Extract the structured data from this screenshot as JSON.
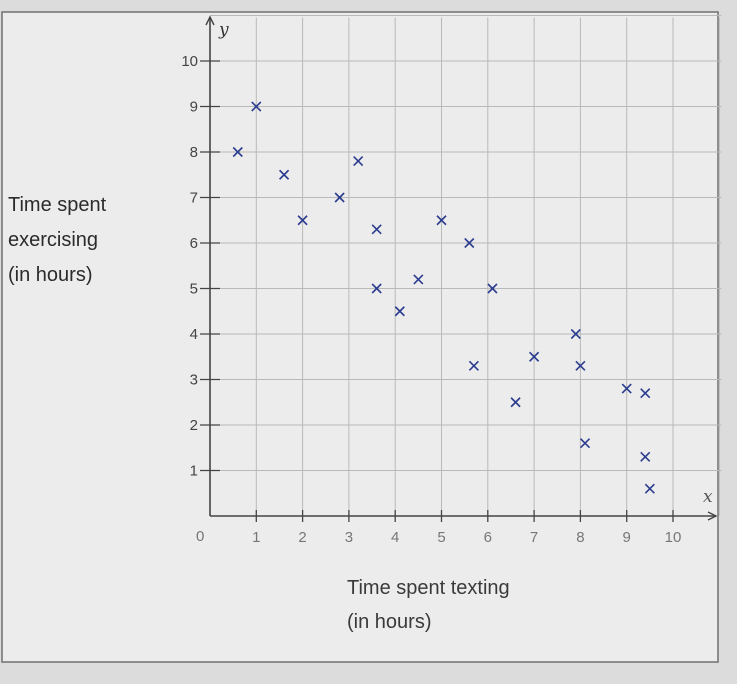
{
  "chart_data": {
    "type": "scatter",
    "ylabel_lines": [
      "Time spent",
      "exercising",
      "(in hours)"
    ],
    "xlabel_lines": [
      "Time spent texting",
      "(in hours)"
    ],
    "x_axis_letter": "x",
    "y_axis_letter": "y",
    "origin_label": "0",
    "xlim": [
      0,
      11
    ],
    "ylim": [
      0,
      11
    ],
    "x_ticks": [
      1,
      2,
      3,
      4,
      5,
      6,
      7,
      8,
      9,
      10
    ],
    "y_ticks": [
      1,
      2,
      3,
      4,
      5,
      6,
      7,
      8,
      9,
      10
    ],
    "grid": true,
    "marker": "x",
    "marker_color": "#2b3c8f",
    "points": [
      {
        "x": 0.6,
        "y": 8.0
      },
      {
        "x": 1.0,
        "y": 9.0
      },
      {
        "x": 1.6,
        "y": 7.5
      },
      {
        "x": 2.0,
        "y": 6.5
      },
      {
        "x": 2.8,
        "y": 7.0
      },
      {
        "x": 3.2,
        "y": 7.8
      },
      {
        "x": 3.6,
        "y": 6.3
      },
      {
        "x": 3.6,
        "y": 5.0
      },
      {
        "x": 4.1,
        "y": 4.5
      },
      {
        "x": 4.5,
        "y": 5.2
      },
      {
        "x": 5.0,
        "y": 6.5
      },
      {
        "x": 5.6,
        "y": 6.0
      },
      {
        "x": 5.7,
        "y": 3.3
      },
      {
        "x": 6.1,
        "y": 5.0
      },
      {
        "x": 6.6,
        "y": 2.5
      },
      {
        "x": 7.0,
        "y": 3.5
      },
      {
        "x": 7.9,
        "y": 4.0
      },
      {
        "x": 8.0,
        "y": 3.3
      },
      {
        "x": 8.1,
        "y": 1.6
      },
      {
        "x": 9.0,
        "y": 2.8
      },
      {
        "x": 9.4,
        "y": 2.7
      },
      {
        "x": 9.4,
        "y": 1.3
      },
      {
        "x": 9.5,
        "y": 0.6
      }
    ]
  }
}
